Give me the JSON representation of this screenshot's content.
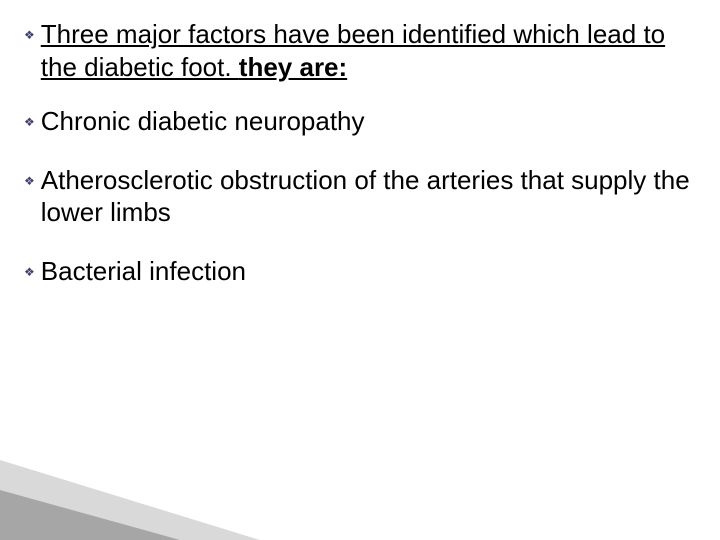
{
  "bullets": [
    {
      "plain_lead": "Three major factors have been identified which lead to the diabetic foot. ",
      "bold_tail": "they are:",
      "underline": true,
      "gap": "gap-sm"
    },
    {
      "plain_lead": "Chronic diabetic neuropathy",
      "bold_tail": "",
      "underline": false,
      "gap": "gap-md"
    },
    {
      "plain_lead": "Atherosclerotic obstruction of the arteries that supply the lower limbs",
      "bold_tail": "",
      "underline": false,
      "gap": "gap-md"
    },
    {
      "plain_lead": "Bacterial infection",
      "bold_tail": "",
      "underline": false,
      "gap": ""
    }
  ],
  "bullet_glyph": "❖",
  "wedge": {
    "fill_light": "#d9d9d9",
    "fill_dark": "#a6a6a6"
  }
}
